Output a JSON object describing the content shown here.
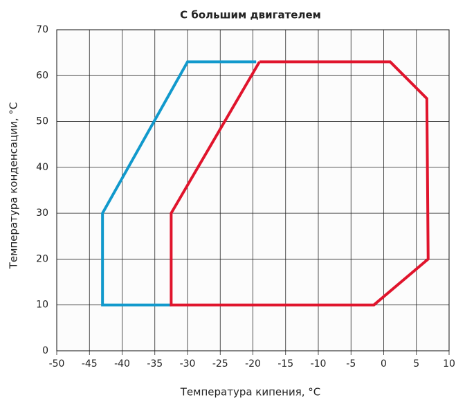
{
  "chart_data": {
    "type": "line",
    "title": "С большим двигателем",
    "xlabel": "Температура кипения, °C",
    "ylabel": "Температура конденсации, °C",
    "series": [
      {
        "color": "#1199cc",
        "x": [
          -32.5,
          -43,
          -43,
          -30,
          -19.5
        ],
        "values": [
          10,
          10,
          30,
          63,
          63
        ]
      },
      {
        "color": "#e0142c",
        "x": [
          -19,
          1,
          6.6,
          6.8,
          -1.5,
          -32.5,
          -32.5,
          -19
        ],
        "values": [
          63,
          63,
          55,
          20,
          10,
          10,
          30,
          63
        ]
      }
    ],
    "xlim": [
      -50,
      10
    ],
    "xticks": [
      -50,
      -45,
      -40,
      -35,
      -30,
      -25,
      -20,
      -15,
      -10,
      -5,
      0,
      5,
      10
    ],
    "ylim": [
      0,
      70
    ],
    "yticks": [
      0,
      10,
      20,
      30,
      40,
      50,
      60,
      70
    ],
    "grid": true
  }
}
